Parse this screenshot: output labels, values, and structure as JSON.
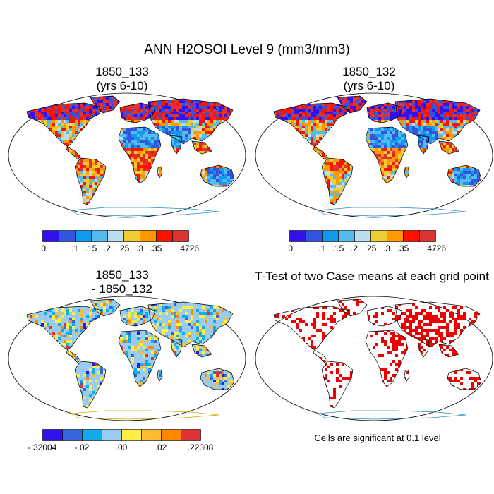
{
  "figure": {
    "title": "ANN H2OSOI Level 9 (mm3/mm3)"
  },
  "panels": [
    {
      "id": "case1",
      "title_line1": "1850_133",
      "title_line2": "(yrs 6-10)",
      "palette": [
        "#3311ee",
        "#3355dd",
        "#1199ee",
        "#55bbee",
        "#bbddee",
        "#eecc33",
        "#ff9900",
        "#ff1100",
        "#dd3333"
      ],
      "colorbar_labels": [
        ".0",
        ".1",
        ".15",
        ".2",
        ".25",
        ".3",
        ".35",
        ".4726"
      ],
      "colorbar_label_positions": [
        0,
        2,
        3,
        4,
        5,
        6,
        7,
        9
      ]
    },
    {
      "id": "case2",
      "title_line1": "1850_132",
      "title_line2": "(yrs 6-10)",
      "palette": [
        "#3311ee",
        "#3355dd",
        "#1199ee",
        "#55bbee",
        "#bbddee",
        "#eecc33",
        "#ff9900",
        "#ff1100",
        "#dd3333"
      ],
      "colorbar_labels": [
        ".0",
        ".1",
        ".15",
        ".2",
        ".25",
        ".3",
        ".35",
        ".4726"
      ],
      "colorbar_label_positions": [
        0,
        2,
        3,
        4,
        5,
        6,
        7,
        9
      ]
    },
    {
      "id": "difference",
      "title_line1": "1850_133",
      "title_line2": "- 1850_132",
      "palette": [
        "#3311ee",
        "#3366dd",
        "#11aaee",
        "#99ccee",
        "#ffee44",
        "#ffbb33",
        "#ff8800",
        "#dd3333"
      ],
      "colorbar_labels": [
        "-.32004",
        "-.02",
        ".00",
        ".02",
        ".22308"
      ],
      "colorbar_label_positions": [
        0,
        2,
        4,
        6,
        8
      ]
    },
    {
      "id": "ttest",
      "title_line1": "T-Test of two Case means at each grid point",
      "significant_color": "#ee0000"
    }
  ],
  "note": "Cells are significant at 0.1 level",
  "colors": {
    "land_outline": "#000000",
    "antarctic_outline": "#2288cc",
    "antarctic_outline_diff": "#ccaa00"
  }
}
